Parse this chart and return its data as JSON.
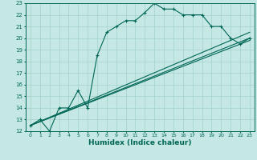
{
  "xlabel": "Humidex (Indice chaleur)",
  "background_color": "#c5e8e5",
  "grid_color": "#a8d4d0",
  "line_color": "#006655",
  "xlim": [
    -0.5,
    23.5
  ],
  "ylim": [
    12,
    23
  ],
  "xticks": [
    0,
    1,
    2,
    3,
    4,
    5,
    6,
    7,
    8,
    9,
    10,
    11,
    12,
    13,
    14,
    15,
    16,
    17,
    18,
    19,
    20,
    21,
    22,
    23
  ],
  "yticks": [
    12,
    13,
    14,
    15,
    16,
    17,
    18,
    19,
    20,
    21,
    22,
    23
  ],
  "curve_x": [
    0,
    1,
    2,
    3,
    4,
    5,
    6,
    7,
    8,
    9,
    10,
    11,
    12,
    13,
    14,
    15,
    16,
    17,
    18,
    19,
    20,
    21,
    22,
    23
  ],
  "curve_y": [
    12.5,
    13.0,
    12.0,
    14.0,
    14.0,
    15.5,
    14.0,
    18.5,
    20.5,
    21.0,
    21.5,
    21.5,
    22.2,
    23.0,
    22.5,
    22.5,
    22.0,
    22.0,
    22.0,
    21.0,
    21.0,
    20.0,
    19.5,
    20.0
  ],
  "line1_x": [
    0,
    23
  ],
  "line1_y": [
    12.5,
    19.8
  ],
  "line2_x": [
    0,
    23
  ],
  "line2_y": [
    12.5,
    20.0
  ],
  "line3_x": [
    0,
    23
  ],
  "line3_y": [
    12.5,
    20.5
  ]
}
